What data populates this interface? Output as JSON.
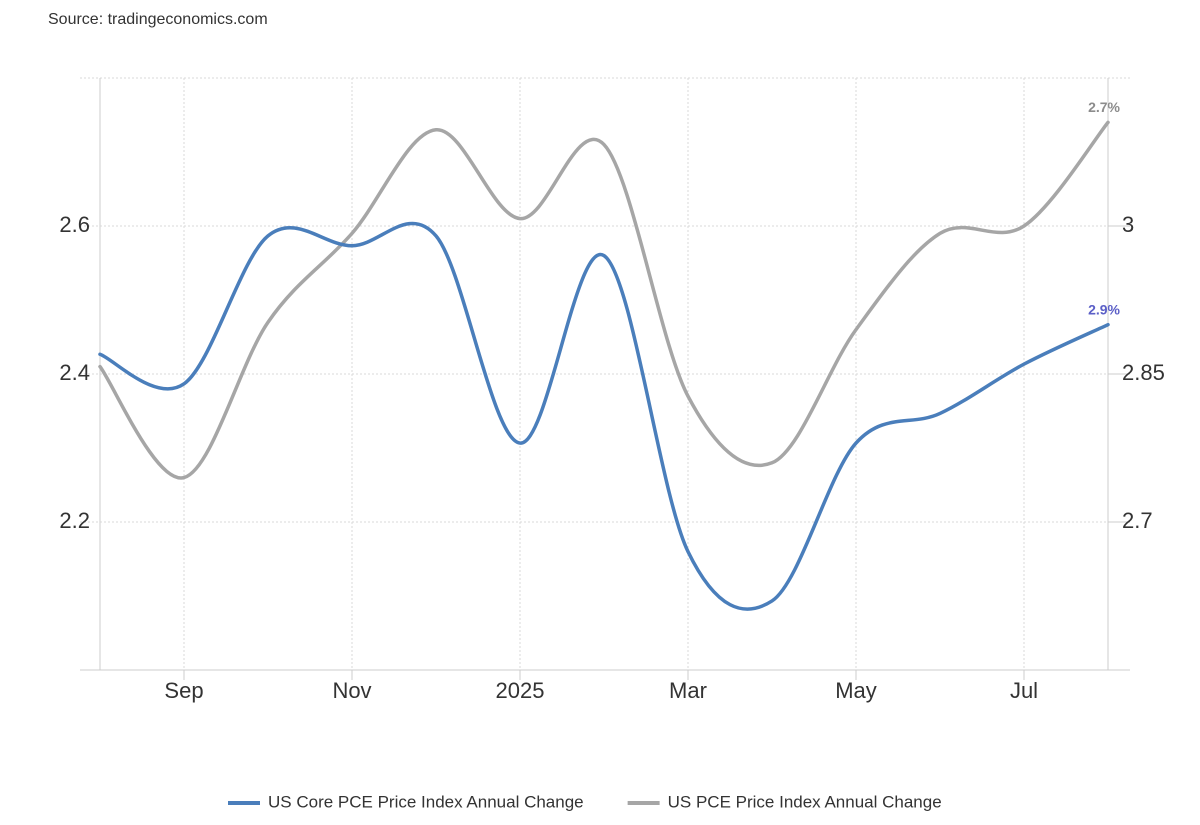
{
  "source": "Source: tradingeconomics.com",
  "chart_data": {
    "type": "line",
    "categories": [
      null,
      "Sep",
      null,
      "Nov",
      null,
      "2025",
      null,
      "Mar",
      null,
      "May",
      null,
      "Jul",
      null
    ],
    "series": [
      {
        "name": "US Core PCE Price Index Annual Change",
        "color": "#4a7ebb",
        "axis": "y2",
        "values": [
          2.87,
          2.84,
          2.99,
          2.98,
          2.99,
          2.78,
          2.97,
          2.67,
          2.62,
          2.78,
          2.81,
          2.86,
          2.9
        ],
        "value_labels": [
          null,
          null,
          null,
          null,
          null,
          null,
          null,
          null,
          null,
          null,
          null,
          null,
          "2.9%"
        ],
        "label_color": "#5b5fc7"
      },
      {
        "name": "US PCE Price Index Annual Change",
        "color": "#a6a6a6",
        "values": [
          2.41,
          2.26,
          2.47,
          2.59,
          2.73,
          2.61,
          2.71,
          2.37,
          2.28,
          2.46,
          2.59,
          2.6,
          2.74
        ],
        "value_labels": [
          null,
          null,
          null,
          null,
          null,
          null,
          null,
          null,
          null,
          null,
          null,
          null,
          "2.7%"
        ],
        "label_color": "#8c8c8c"
      }
    ],
    "ylim": [
      2.0,
      2.8
    ],
    "yticks": [
      2.2,
      2.4,
      2.6
    ],
    "y2lim": [
      2.55,
      3.15
    ],
    "y2ticks": [
      2.7,
      2.85,
      3
    ],
    "grid": true,
    "legend": "bottom"
  }
}
